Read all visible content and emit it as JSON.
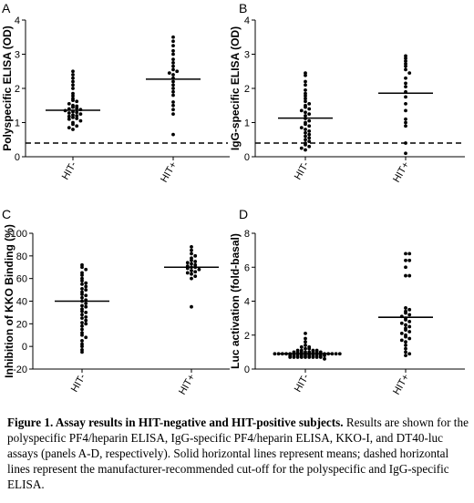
{
  "chart_data": [
    {
      "panel": "A",
      "type": "scatter",
      "ylabel": "Polyspecific ELISA (OD)",
      "categories": [
        "HIT-",
        "HIT+"
      ],
      "ylim": [
        0,
        4
      ],
      "yticks": [
        0,
        1,
        2,
        3,
        4
      ],
      "cutoff": 0.4,
      "means": [
        1.36,
        2.27
      ],
      "series": [
        {
          "category": "HIT-",
          "values": [
            2.5,
            2.4,
            2.3,
            2.2,
            2.1,
            2.0,
            1.85,
            1.78,
            1.7,
            1.65,
            1.62,
            1.55,
            1.5,
            1.48,
            1.45,
            1.42,
            1.4,
            1.38,
            1.35,
            1.32,
            1.3,
            1.28,
            1.25,
            1.22,
            1.2,
            1.18,
            1.15,
            1.12,
            1.1,
            1.05,
            1.0,
            0.95,
            0.9,
            0.85,
            0.8
          ]
        },
        {
          "category": "HIT+",
          "values": [
            3.5,
            3.38,
            3.25,
            3.1,
            3.0,
            2.85,
            2.75,
            2.65,
            2.55,
            2.5,
            2.45,
            2.4,
            2.3,
            2.2,
            2.1,
            2.0,
            1.9,
            1.8,
            1.6,
            1.5,
            1.38,
            1.25,
            0.65
          ]
        }
      ]
    },
    {
      "panel": "B",
      "type": "scatter",
      "ylabel": "IgG-specific ELISA (OD)",
      "categories": [
        "HIT-",
        "HIT+"
      ],
      "ylim": [
        0,
        4
      ],
      "yticks": [
        0,
        1,
        2,
        3,
        4
      ],
      "cutoff": 0.4,
      "means": [
        1.13,
        1.86
      ],
      "series": [
        {
          "category": "HIT-",
          "values": [
            2.45,
            2.38,
            2.2,
            2.1,
            1.95,
            1.85,
            1.78,
            1.7,
            1.62,
            1.55,
            1.5,
            1.45,
            1.4,
            1.35,
            1.3,
            1.25,
            1.2,
            1.12,
            1.05,
            1.0,
            0.95,
            0.9,
            0.85,
            0.8,
            0.75,
            0.7,
            0.65,
            0.6,
            0.55,
            0.5,
            0.45,
            0.4,
            0.35,
            0.3,
            0.25,
            0.2
          ]
        },
        {
          "category": "HIT+",
          "values": [
            2.95,
            2.88,
            2.8,
            2.72,
            2.65,
            2.55,
            2.45,
            2.3,
            2.15,
            2.05,
            1.9,
            1.75,
            1.55,
            1.35,
            1.1,
            1.0,
            0.9,
            0.4,
            0.1
          ]
        }
      ]
    },
    {
      "panel": "C",
      "type": "scatter",
      "ylabel": "Inhibition of KKO Binding (%)",
      "categories": [
        "HIT-",
        "HIT+"
      ],
      "ylim": [
        -20,
        100
      ],
      "yticks": [
        -20,
        0,
        20,
        40,
        60,
        80,
        100
      ],
      "means": [
        40,
        70
      ],
      "series": [
        {
          "category": "HIT-",
          "values": [
            72,
            70,
            68,
            65,
            63,
            60,
            58,
            56,
            55,
            53,
            51,
            50,
            48,
            46,
            45,
            43,
            41,
            40,
            38,
            36,
            35,
            33,
            31,
            30,
            28,
            26,
            25,
            23,
            21,
            20,
            18,
            15,
            12,
            10,
            8,
            5,
            2,
            0,
            -3,
            -5
          ]
        },
        {
          "category": "HIT+",
          "values": [
            88,
            85,
            82,
            80,
            78,
            76,
            75,
            74,
            73,
            72,
            71,
            70,
            70,
            69,
            68,
            67,
            66,
            65,
            64,
            62,
            60,
            35
          ]
        }
      ]
    },
    {
      "panel": "D",
      "type": "scatter",
      "ylabel": "Luc activation (fold-basal)",
      "categories": [
        "HIT-",
        "HIT+"
      ],
      "ylim": [
        0,
        8
      ],
      "yticks": [
        0,
        2,
        4,
        6,
        8
      ],
      "means": [
        0.9,
        3.05
      ],
      "series": [
        {
          "category": "HIT-",
          "values": [
            2.1,
            1.8,
            1.6,
            1.4,
            1.3,
            1.3,
            1.2,
            1.2,
            1.1,
            1.1,
            1.1,
            1.1,
            1.0,
            1.0,
            1.0,
            1.0,
            1.0,
            1.0,
            1.0,
            1.0,
            0.9,
            0.9,
            0.9,
            0.9,
            0.9,
            0.9,
            0.9,
            0.9,
            0.9,
            0.9,
            0.8,
            0.8,
            0.8,
            0.8,
            0.8,
            0.8,
            0.8,
            0.8,
            0.8,
            0.8,
            0.7,
            0.7,
            0.7,
            0.7,
            0.7,
            0.7,
            0.7,
            0.7,
            0.7,
            0.6
          ]
        },
        {
          "category": "HIT+",
          "values": [
            6.8,
            6.8,
            6.4,
            6.4,
            6.0,
            5.5,
            5.5,
            3.6,
            3.5,
            3.4,
            3.3,
            3.2,
            3.1,
            3.0,
            2.9,
            2.8,
            2.7,
            2.6,
            2.5,
            2.4,
            2.3,
            2.2,
            2.1,
            2.0,
            1.9,
            1.8,
            1.7,
            1.6,
            1.4,
            1.2,
            1.0,
            0.9,
            0.8
          ]
        }
      ]
    }
  ],
  "caption": {
    "title": "Figure 1. Assay results in HIT-negative and HIT-positive subjects.",
    "body": " Results are shown for the polyspecific PF4/heparin ELISA, IgG-specific PF4/heparin ELISA, KKO-I, and DT40-luc assays (panels A-D, respectively).  Solid horizontal lines represent means; dashed horizontal lines represent the manufacturer-recommended cut-off for the polyspecific and IgG-specific ELISA."
  }
}
